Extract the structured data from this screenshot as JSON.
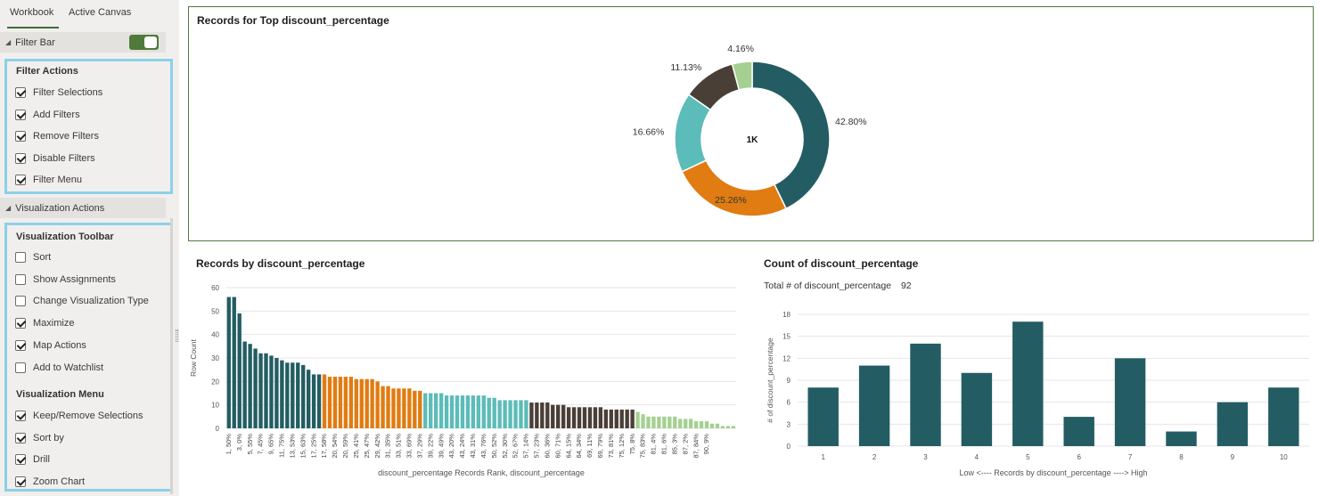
{
  "tabs": [
    "Workbook",
    "Active Canvas"
  ],
  "filter_bar": {
    "label": "Filter Bar",
    "enabled": true
  },
  "filter_actions": {
    "title": "Filter Actions",
    "items": [
      {
        "label": "Filter Selections",
        "checked": true
      },
      {
        "label": "Add Filters",
        "checked": true
      },
      {
        "label": "Remove Filters",
        "checked": true
      },
      {
        "label": "Disable Filters",
        "checked": true
      },
      {
        "label": "Filter Menu",
        "checked": true
      }
    ]
  },
  "visualization_actions": {
    "label": "Visualization Actions",
    "toolbar_title": "Visualization Toolbar",
    "toolbar_items": [
      {
        "label": "Sort",
        "checked": false
      },
      {
        "label": "Show Assignments",
        "checked": false
      },
      {
        "label": "Change Visualization Type",
        "checked": false
      },
      {
        "label": "Maximize",
        "checked": true
      },
      {
        "label": "Map Actions",
        "checked": true
      },
      {
        "label": "Add to Watchlist",
        "checked": false
      }
    ],
    "menu_title": "Visualization Menu",
    "menu_items": [
      {
        "label": "Keep/Remove Selections",
        "checked": true
      },
      {
        "label": "Sort by",
        "checked": true
      },
      {
        "label": "Drill",
        "checked": true
      },
      {
        "label": "Zoom Chart",
        "checked": true
      }
    ]
  },
  "colors": {
    "teal_dark": "#235d63",
    "orange": "#e07c12",
    "teal_light": "#5cbcb9",
    "brown": "#4a3f37",
    "green_light": "#a5d091",
    "accent_green": "#4f7a3a",
    "highlight_blue": "#8dd0e8"
  },
  "chart_data": [
    {
      "type": "pie",
      "title": "Records for Top discount_percentage",
      "center_label": "1K",
      "slices": [
        {
          "label": "42.80%",
          "value": 42.8,
          "color": "#235d63"
        },
        {
          "label": "25.26%",
          "value": 25.26,
          "color": "#e07c12"
        },
        {
          "label": "16.66%",
          "value": 16.66,
          "color": "#5cbcb9"
        },
        {
          "label": "11.13%",
          "value": 11.13,
          "color": "#4a3f37"
        },
        {
          "label": "4.16%",
          "value": 4.16,
          "color": "#a5d091"
        }
      ]
    },
    {
      "type": "bar",
      "title": "Records by discount_percentage",
      "xlabel": "discount_percentage Records Rank, discount_percentage",
      "ylabel": "Row Count",
      "ylim": [
        0,
        60
      ],
      "yticks": [
        0,
        10,
        20,
        30,
        40,
        50,
        60
      ],
      "grid": true,
      "tick_labels": [
        "1, 50%",
        "3, 0%",
        "5, 55%",
        "7, 45%",
        "9, 65%",
        "11, 75%",
        "13, 53%",
        "15, 63%",
        "17, 25%",
        "17, 58%",
        "20, 54%",
        "20, 59%",
        "25, 41%",
        "25, 47%",
        "29, 42%",
        "31, 35%",
        "33, 51%",
        "33, 69%",
        "37, 29%",
        "39, 22%",
        "39, 49%",
        "43, 20%",
        "43, 24%",
        "43, 31%",
        "43, 76%",
        "50, 52%",
        "52, 30%",
        "52, 67%",
        "57, 14%",
        "57, 23%",
        "60, 36%",
        "60, 71%",
        "64, 15%",
        "64, 34%",
        "69, 11%",
        "69, 79%",
        "73, 81%",
        "75, 12%",
        "75, 8%",
        "75, 83%",
        "81, 4%",
        "81, 6%",
        "85, 3%",
        "87, 2%",
        "87, 84%",
        "90, 9%"
      ],
      "values": [
        56,
        56,
        49,
        37,
        36,
        34,
        32,
        32,
        31,
        30,
        29,
        28,
        28,
        28,
        27,
        25,
        23,
        23,
        23,
        22,
        22,
        22,
        22,
        22,
        21,
        21,
        21,
        21,
        20,
        18,
        18,
        17,
        17,
        17,
        17,
        16,
        16,
        15,
        15,
        15,
        15,
        14,
        14,
        14,
        14,
        14,
        14,
        14,
        14,
        13,
        13,
        12,
        12,
        12,
        12,
        12,
        12,
        11,
        11,
        11,
        11,
        10,
        10,
        10,
        9,
        9,
        9,
        9,
        9,
        9,
        9,
        8,
        8,
        8,
        8,
        8,
        8,
        7,
        6,
        5,
        5,
        5,
        5,
        5,
        5,
        4,
        4,
        4,
        3,
        3,
        3,
        2,
        2,
        1,
        1,
        1
      ],
      "color_groups": [
        {
          "count": 18,
          "color": "#235d63"
        },
        {
          "count": 19,
          "color": "#e07c12"
        },
        {
          "count": 20,
          "color": "#5cbcb9"
        },
        {
          "count": 20,
          "color": "#4a3f37"
        },
        {
          "count": 19,
          "color": "#a5d091"
        }
      ]
    },
    {
      "type": "bar",
      "title": "Count of discount_percentage",
      "total_label": "Total # of discount_percentage",
      "total_value": "92",
      "xlabel": "Low <---- Records by discount_percentage ----> High",
      "ylabel": "# of discount_percentage",
      "ylim": [
        0,
        18
      ],
      "yticks": [
        0,
        3,
        6,
        9,
        12,
        15,
        18
      ],
      "grid": true,
      "categories": [
        "1",
        "2",
        "3",
        "4",
        "5",
        "6",
        "7",
        "8",
        "9",
        "10"
      ],
      "values": [
        8,
        11,
        14,
        10,
        17,
        4,
        12,
        2,
        6,
        8
      ],
      "color": "#235d63"
    }
  ]
}
